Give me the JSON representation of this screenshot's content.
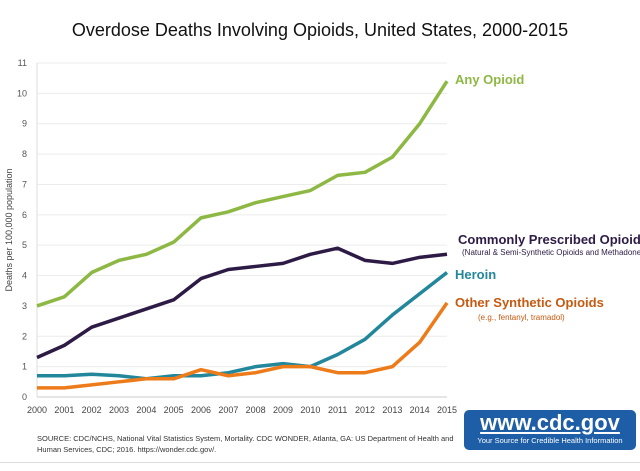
{
  "chart_data": {
    "type": "line",
    "title": "Overdose Deaths Involving Opioids, United States, 2000-2015",
    "xlabel": "",
    "ylabel": "Deaths per 100,000 population",
    "ylim": [
      0,
      11
    ],
    "yticks": [
      0,
      1,
      2,
      3,
      4,
      5,
      6,
      7,
      8,
      9,
      10,
      11
    ],
    "grid": true,
    "x": [
      2000,
      2001,
      2002,
      2003,
      2004,
      2005,
      2006,
      2007,
      2008,
      2009,
      2010,
      2011,
      2012,
      2013,
      2014,
      2015
    ],
    "series": [
      {
        "name": "Any Opioid",
        "sublabel": "",
        "color": "#8db843",
        "label_color": "#8db843",
        "values": [
          3.0,
          3.3,
          4.1,
          4.5,
          4.7,
          5.1,
          5.9,
          6.1,
          6.4,
          6.6,
          6.8,
          7.3,
          7.4,
          7.9,
          9.0,
          10.4
        ]
      },
      {
        "name": "Commonly Prescribed Opioids",
        "sublabel": "(Natural & Semi-Synthetic Opioids and Methadone)",
        "color": "#2d1b45",
        "label_color": "#2d1b45",
        "values": [
          1.3,
          1.7,
          2.3,
          2.6,
          2.9,
          3.2,
          3.9,
          4.2,
          4.3,
          4.4,
          4.7,
          4.9,
          4.5,
          4.4,
          4.6,
          4.7
        ]
      },
      {
        "name": "Heroin",
        "sublabel": "",
        "color": "#23879c",
        "label_color": "#23879c",
        "values": [
          0.7,
          0.7,
          0.75,
          0.7,
          0.6,
          0.7,
          0.7,
          0.8,
          1.0,
          1.1,
          1.0,
          1.4,
          1.9,
          2.7,
          3.4,
          4.1
        ]
      },
      {
        "name": "Other Synthetic Opioids",
        "sublabel": "(e.g., fentanyl, tramadol)",
        "color": "#ee7b1a",
        "label_color": "#c55a11",
        "values": [
          0.3,
          0.3,
          0.4,
          0.5,
          0.6,
          0.6,
          0.9,
          0.7,
          0.8,
          1.0,
          1.0,
          0.8,
          0.8,
          1.0,
          1.8,
          3.1
        ]
      }
    ]
  },
  "source": "SOURCE: CDC/NCHS, National Vital Statistics System, Mortality. CDC WONDER, Atlanta, GA: US Department of Health and Human Services, CDC; 2016. https://wonder.cdc.gov/.",
  "logo": {
    "url": "www.cdc.gov",
    "tagline": "Your Source for Credible Health Information"
  }
}
